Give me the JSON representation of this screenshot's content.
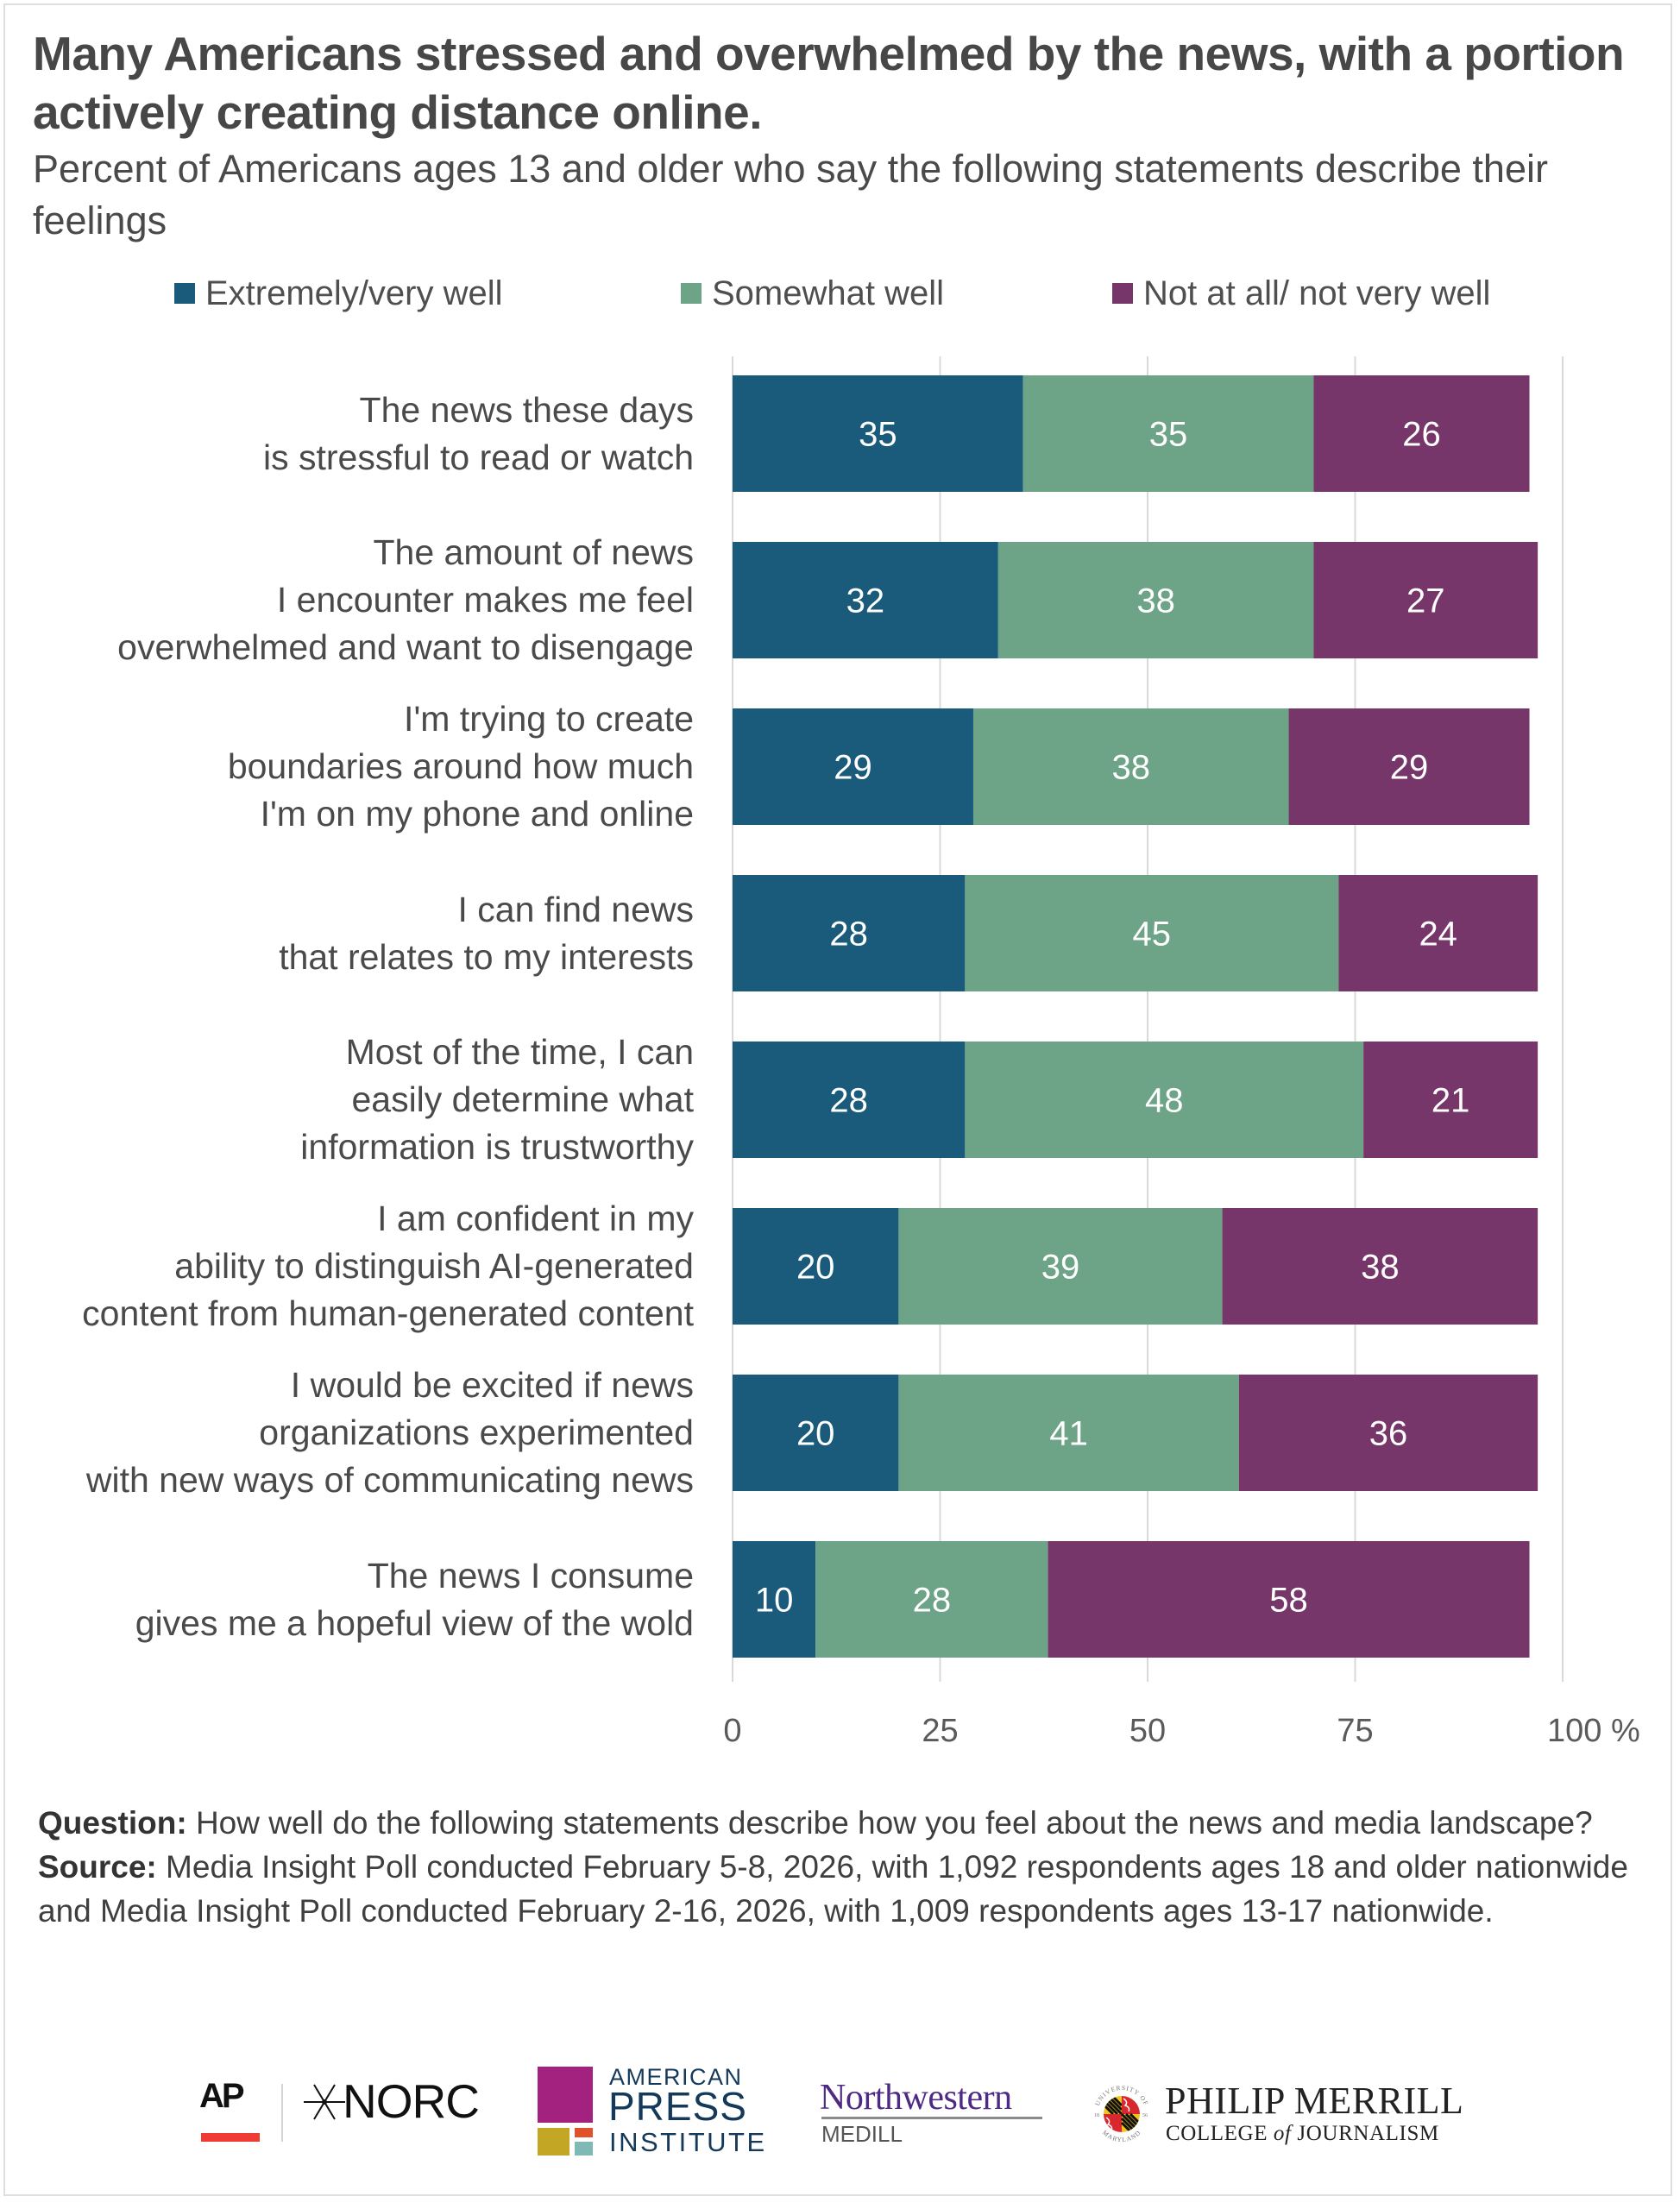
{
  "title": "Many Americans stressed and overwhelmed by the news, with a portion actively creating distance online.",
  "subtitle": "Percent of Americans ages 13 and older who say the following statements describe their feelings",
  "colors": {
    "extremely_very_well": "#1a5b7c",
    "somewhat_well": "#6da386",
    "not_at_all_not_very_well": "#77366a",
    "gridline": "#d9d9d9",
    "text": "#4a4a4a",
    "bar_label": "#ffffff"
  },
  "legend": [
    {
      "label": "Extremely/very well",
      "color": "#1a5b7c"
    },
    {
      "label": "Somewhat well",
      "color": "#6da386"
    },
    {
      "label": "Not at all/ not very well",
      "color": "#77366a"
    }
  ],
  "chart_data": {
    "type": "bar",
    "orientation": "horizontal",
    "stacked": true,
    "title": "Many Americans stressed and overwhelmed by the news, with a portion actively creating distance online.",
    "subtitle": "Percent of Americans ages 13 and older who say the following statements describe their feelings",
    "xlabel": "",
    "ylabel": "",
    "xlim": [
      0,
      100
    ],
    "x_ticks": [
      0,
      25,
      50,
      75,
      100
    ],
    "x_tick_labels": [
      "0",
      "25",
      "50",
      "75",
      "100 %"
    ],
    "grid": true,
    "legend_position": "top",
    "categories": [
      "The news these days\nis stressful to read or watch",
      "The amount of news\nI encounter makes me feel\noverwhelmed and want to disengage",
      "I'm trying to create\nboundaries around how much\nI'm on my phone and online",
      "I can find news\nthat relates to my interests",
      "Most of the time, I can\neasily determine what\ninformation is trustworthy",
      "I am confident in my\nability to distinguish AI-generated\ncontent from human-generated content",
      "I would be excited if news\norganizations experimented\nwith new ways of communicating news",
      "The news I consume\ngives me a hopeful view of the wold"
    ],
    "series": [
      {
        "name": "Extremely/very well",
        "color": "#1a5b7c",
        "values": [
          35,
          32,
          29,
          28,
          28,
          20,
          20,
          10
        ]
      },
      {
        "name": "Somewhat well",
        "color": "#6da386",
        "values": [
          35,
          38,
          38,
          45,
          48,
          39,
          41,
          28
        ]
      },
      {
        "name": "Not at all/ not very well",
        "color": "#77366a",
        "values": [
          26,
          27,
          29,
          24,
          21,
          38,
          36,
          58
        ]
      }
    ]
  },
  "notes": {
    "question_label": "Question:",
    "question_text": " How well do the following statements describe how you feel about the news and media landscape?",
    "source_label": "Source:",
    "source_text": " Media Insight Poll conducted February 5-8, 2026, with 1,092 respondents ages 18 and older nationwide and Media Insight Poll conducted February 2-16, 2026, with 1,009 respondents ages 13-17 nationwide."
  },
  "logos": {
    "ap": "AP",
    "norc": "NORC",
    "api_line1": "AMERICAN",
    "api_line2": "PRESS",
    "api_line3": "INSTITUTE",
    "northwestern": "Northwestern",
    "medill": "MEDILL",
    "umd_seal_top": "UNIVERSITY OF",
    "umd_seal_bottom": "MARYLAND",
    "umd_seal_left": "18",
    "umd_seal_right": "56",
    "merrill_line1": "PHILIP MERRILL",
    "merrill_line2_a": "COLLEGE ",
    "merrill_line2_of": "of",
    "merrill_line2_b": " JOURNALISM"
  }
}
